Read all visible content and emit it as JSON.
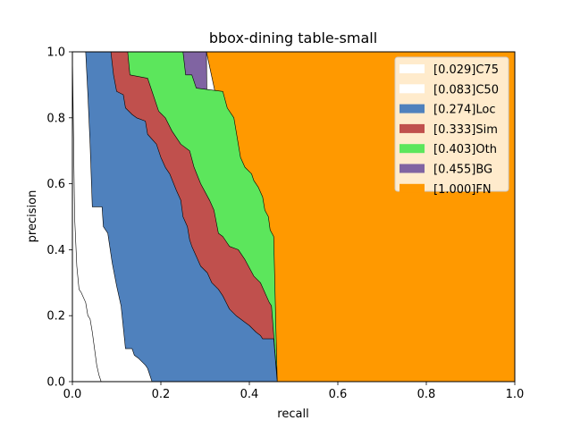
{
  "chart_data": {
    "type": "area",
    "title": "bbox-dining table-small",
    "xlabel": "recall",
    "ylabel": "precision",
    "xlim": [
      0,
      1
    ],
    "ylim": [
      0,
      1
    ],
    "x_ticks": [
      "0.0",
      "0.2",
      "0.4",
      "0.6",
      "0.8",
      "1.0"
    ],
    "y_ticks": [
      "0.0",
      "0.2",
      "0.4",
      "0.6",
      "0.8",
      "1.0"
    ],
    "legend_position": "top-right",
    "grid": false,
    "series": [
      {
        "name": "[1.000]FN",
        "color": "#ff9900",
        "points": [
          [
            0.303,
            1.0
          ],
          [
            1.0,
            1.0
          ],
          [
            1.0,
            0.0
          ],
          [
            0.463,
            0.0
          ]
        ]
      },
      {
        "name": "[0.455]BG",
        "color": "#8064a2",
        "points": [
          [
            0.0,
            1.0
          ],
          [
            0.303,
            1.0
          ],
          [
            0.306,
            0.6
          ],
          [
            0.308,
            0.45
          ],
          [
            0.463,
            0.0
          ],
          [
            0.0,
            0.0
          ]
        ]
      },
      {
        "name": "[0.403]Oth",
        "color": "#5ce65c",
        "points": [
          [
            0.0,
            1.0
          ],
          [
            0.25,
            1.0
          ],
          [
            0.256,
            0.93
          ],
          [
            0.27,
            0.93
          ],
          [
            0.28,
            0.89
          ],
          [
            0.34,
            0.88
          ],
          [
            0.35,
            0.83
          ],
          [
            0.365,
            0.8
          ],
          [
            0.375,
            0.72
          ],
          [
            0.38,
            0.68
          ],
          [
            0.39,
            0.65
          ],
          [
            0.405,
            0.63
          ],
          [
            0.41,
            0.61
          ],
          [
            0.42,
            0.59
          ],
          [
            0.43,
            0.56
          ],
          [
            0.435,
            0.52
          ],
          [
            0.443,
            0.5
          ],
          [
            0.447,
            0.46
          ],
          [
            0.455,
            0.44
          ],
          [
            0.463,
            0.0
          ],
          [
            0.0,
            0.0
          ]
        ]
      },
      {
        "name": "[0.333]Sim",
        "color": "#c0504d",
        "points": [
          [
            0.0,
            1.0
          ],
          [
            0.125,
            1.0
          ],
          [
            0.13,
            0.93
          ],
          [
            0.17,
            0.92
          ],
          [
            0.18,
            0.88
          ],
          [
            0.195,
            0.82
          ],
          [
            0.21,
            0.8
          ],
          [
            0.225,
            0.76
          ],
          [
            0.245,
            0.72
          ],
          [
            0.265,
            0.7
          ],
          [
            0.275,
            0.65
          ],
          [
            0.29,
            0.6
          ],
          [
            0.31,
            0.55
          ],
          [
            0.32,
            0.52
          ],
          [
            0.33,
            0.45
          ],
          [
            0.34,
            0.44
          ],
          [
            0.355,
            0.41
          ],
          [
            0.375,
            0.4
          ],
          [
            0.39,
            0.37
          ],
          [
            0.41,
            0.32
          ],
          [
            0.425,
            0.3
          ],
          [
            0.445,
            0.24
          ],
          [
            0.45,
            0.23
          ],
          [
            0.463,
            0.0
          ],
          [
            0.0,
            0.0
          ]
        ]
      },
      {
        "name": "[0.274]Loc",
        "color": "#4f81bd",
        "points": [
          [
            0.0,
            1.0
          ],
          [
            0.087,
            1.0
          ],
          [
            0.093,
            0.93
          ],
          [
            0.1,
            0.88
          ],
          [
            0.115,
            0.87
          ],
          [
            0.12,
            0.83
          ],
          [
            0.135,
            0.81
          ],
          [
            0.145,
            0.8
          ],
          [
            0.165,
            0.79
          ],
          [
            0.17,
            0.75
          ],
          [
            0.19,
            0.72
          ],
          [
            0.2,
            0.68
          ],
          [
            0.21,
            0.65
          ],
          [
            0.22,
            0.63
          ],
          [
            0.235,
            0.58
          ],
          [
            0.245,
            0.55
          ],
          [
            0.25,
            0.5
          ],
          [
            0.26,
            0.47
          ],
          [
            0.265,
            0.43
          ],
          [
            0.27,
            0.41
          ],
          [
            0.28,
            0.38
          ],
          [
            0.29,
            0.35
          ],
          [
            0.305,
            0.33
          ],
          [
            0.315,
            0.3
          ],
          [
            0.33,
            0.28
          ],
          [
            0.34,
            0.26
          ],
          [
            0.355,
            0.22
          ],
          [
            0.37,
            0.2
          ],
          [
            0.38,
            0.19
          ],
          [
            0.39,
            0.18
          ],
          [
            0.4,
            0.17
          ],
          [
            0.415,
            0.15
          ],
          [
            0.425,
            0.14
          ],
          [
            0.43,
            0.13
          ],
          [
            0.445,
            0.13
          ],
          [
            0.455,
            0.13
          ],
          [
            0.463,
            0.0
          ],
          [
            0.0,
            0.0
          ]
        ]
      },
      {
        "name": "[0.083]C50",
        "color": "#ffffff",
        "points": [
          [
            0.0,
            1.0
          ],
          [
            0.03,
            1.0
          ],
          [
            0.035,
            0.87
          ],
          [
            0.04,
            0.72
          ],
          [
            0.045,
            0.53
          ],
          [
            0.067,
            0.53
          ],
          [
            0.07,
            0.47
          ],
          [
            0.08,
            0.45
          ],
          [
            0.09,
            0.36
          ],
          [
            0.1,
            0.29
          ],
          [
            0.11,
            0.23
          ],
          [
            0.12,
            0.1
          ],
          [
            0.135,
            0.1
          ],
          [
            0.14,
            0.08
          ],
          [
            0.15,
            0.07
          ],
          [
            0.165,
            0.05
          ],
          [
            0.17,
            0.04
          ],
          [
            0.18,
            0.0
          ],
          [
            0.0,
            0.0
          ]
        ]
      },
      {
        "name": "[0.029]C75",
        "color": "#ffffff",
        "points": [
          [
            0.0,
            1.0
          ],
          [
            0.005,
            0.5
          ],
          [
            0.01,
            0.35
          ],
          [
            0.015,
            0.28
          ],
          [
            0.02,
            0.27
          ],
          [
            0.03,
            0.24
          ],
          [
            0.035,
            0.2
          ],
          [
            0.04,
            0.19
          ],
          [
            0.045,
            0.15
          ],
          [
            0.05,
            0.1
          ],
          [
            0.055,
            0.05
          ],
          [
            0.06,
            0.02
          ],
          [
            0.065,
            0.0
          ],
          [
            0.0,
            0.0
          ]
        ]
      }
    ],
    "legend_order": [
      "[0.029]C75",
      "[0.083]C50",
      "[0.274]Loc",
      "[0.333]Sim",
      "[0.403]Oth",
      "[0.455]BG",
      "[1.000]FN"
    ],
    "legend_colors": [
      "#ffffff",
      "#ffffff",
      "#4f81bd",
      "#c0504d",
      "#5ce65c",
      "#8064a2",
      "#ff9900"
    ]
  }
}
